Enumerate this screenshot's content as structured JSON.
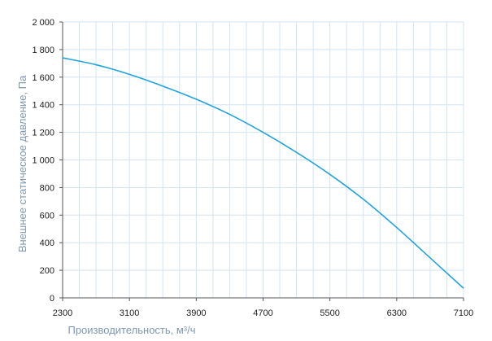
{
  "chart_data": {
    "type": "line",
    "title": "",
    "xlabel": "Производительность, м³/ч",
    "ylabel": "Внешнее статическое давление, Па",
    "xlim": [
      2300,
      7100
    ],
    "ylim": [
      0,
      2000
    ],
    "x_ticks": [
      2300,
      3100,
      3900,
      4700,
      5500,
      6300,
      7100
    ],
    "x_tick_labels": [
      "2300",
      "3100",
      "3900",
      "4700",
      "5500",
      "6300",
      "7100"
    ],
    "y_ticks": [
      0,
      200,
      400,
      600,
      800,
      1000,
      1200,
      1400,
      1600,
      1800,
      2000
    ],
    "y_tick_labels": [
      "0",
      "200",
      "400",
      "600",
      "800",
      "1 000",
      "1 200",
      "1 400",
      "1 600",
      "1 800",
      "2 000"
    ],
    "x_minor_step": 200,
    "grid": true,
    "colors": {
      "line": "#1fa3df",
      "grid": "#d3e4f2",
      "axis": "#555555",
      "tick_text": "#222222",
      "axis_title": "#7f97b2"
    },
    "series": [
      {
        "x": [
          2300,
          2700,
          3100,
          3500,
          3900,
          4300,
          4700,
          5100,
          5500,
          5900,
          6300,
          6700,
          7100
        ],
        "values": [
          1740,
          1690,
          1620,
          1535,
          1440,
          1330,
          1200,
          1055,
          895,
          715,
          510,
          290,
          70
        ]
      }
    ]
  }
}
